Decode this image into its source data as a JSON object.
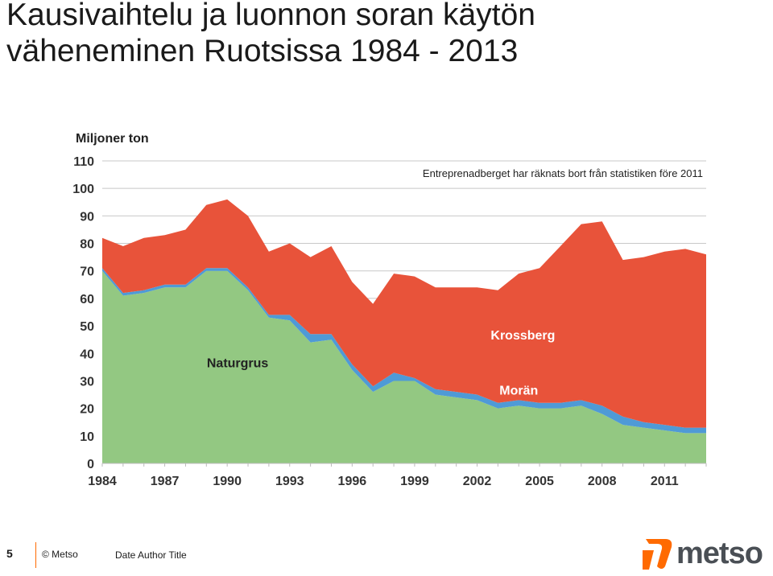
{
  "slide": {
    "title_line1": "Kausivaihtelu ja luonnon soran käytön",
    "title_line2": "väheneminen Ruotsissa 1984 - 2013"
  },
  "footer": {
    "page_number": "5",
    "copyright": "© Metso",
    "meta": "Date Author Title",
    "logo_text": "metso"
  },
  "colors": {
    "naturgrus": "#93c882",
    "moran": "#4f9ad6",
    "krossberg": "#e8533a",
    "grid": "#c8c8c8",
    "accent": "#ff6a00",
    "logo_gray": "#4a4f55"
  },
  "chart_data": {
    "type": "area",
    "stacked": true,
    "ylabel": "Miljoner ton",
    "annotation": "Entreprenadberget har räknats bort från statistiken före 2011",
    "ylim": [
      0,
      110
    ],
    "yticks": [
      0,
      10,
      20,
      30,
      40,
      50,
      60,
      70,
      80,
      90,
      100,
      110
    ],
    "xticks": [
      1984,
      1987,
      1990,
      1993,
      1996,
      1999,
      2002,
      2005,
      2008,
      2011
    ],
    "grid": true,
    "x": [
      1984,
      1985,
      1986,
      1987,
      1988,
      1989,
      1990,
      1991,
      1992,
      1993,
      1994,
      1995,
      1996,
      1997,
      1998,
      1999,
      2000,
      2001,
      2002,
      2003,
      2004,
      2005,
      2006,
      2007,
      2008,
      2009,
      2010,
      2011,
      2012,
      2013
    ],
    "series": [
      {
        "name": "Naturgrus",
        "values": [
          70,
          61,
          62,
          64,
          64,
          70,
          70,
          63,
          53,
          52,
          44,
          45,
          34,
          26,
          30,
          30,
          25,
          24,
          23,
          20,
          21,
          20,
          20,
          21,
          18,
          14,
          13,
          12,
          11,
          11
        ]
      },
      {
        "name": "Morän",
        "values": [
          1,
          1,
          1,
          1,
          1,
          1,
          1,
          1,
          1,
          2,
          3,
          2,
          2,
          2,
          3,
          1,
          2,
          2,
          2,
          2,
          2,
          2,
          2,
          2,
          3,
          3,
          2,
          2,
          2,
          2
        ]
      },
      {
        "name": "Krossberg",
        "values": [
          11,
          17,
          19,
          18,
          20,
          23,
          25,
          26,
          23,
          26,
          28,
          32,
          30,
          30,
          36,
          37,
          37,
          38,
          39,
          41,
          46,
          49,
          57,
          64,
          67,
          57,
          60,
          63,
          65,
          63
        ]
      }
    ]
  }
}
